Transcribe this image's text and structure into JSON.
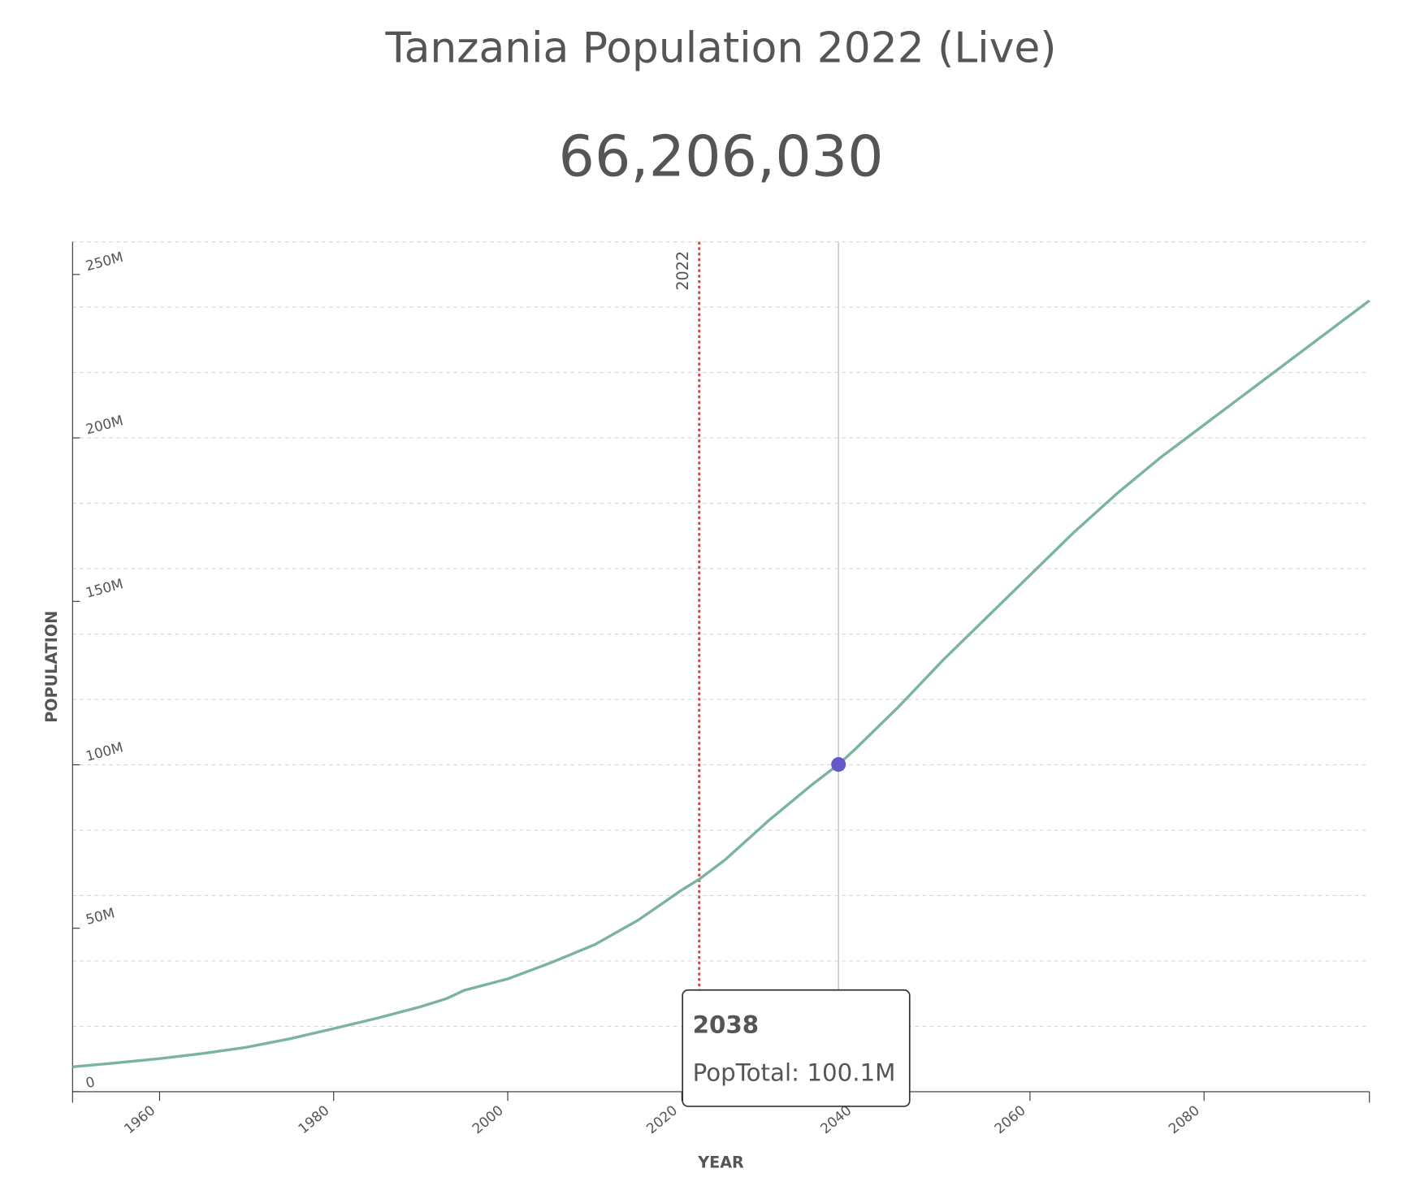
{
  "chart_data": {
    "type": "line",
    "title": "Tanzania Population 2022 (Live)",
    "subtitle": "66,206,030",
    "x_label": "YEAR",
    "y_label": "POPULATION",
    "x": [
      1950,
      1955,
      1960,
      1965,
      1970,
      1975,
      1980,
      1985,
      1990,
      1993,
      1995,
      2000,
      2005,
      2010,
      2015,
      2020,
      2022,
      2025,
      2030,
      2035,
      2038,
      2040,
      2045,
      2050,
      2055,
      2060,
      2065,
      2070,
      2075,
      2080,
      2085,
      2090,
      2095,
      2099
    ],
    "series": [
      {
        "name": "PopTotal",
        "color": "#7ab3a0",
        "values": [
          7600000,
          8800000,
          10100000,
          11700000,
          13600000,
          16200000,
          19300000,
          22500000,
          26000000,
          28500000,
          31000000,
          34500000,
          39500000,
          45000000,
          52500000,
          61700000,
          65000000,
          71000000,
          83000000,
          94000000,
          100100000,
          105000000,
          118000000,
          132000000,
          145000000,
          158000000,
          171000000,
          183000000,
          194000000,
          204000000,
          214000000,
          224000000,
          234000000,
          242000000
        ]
      }
    ],
    "xlim": [
      1950,
      2099
    ],
    "ylim": [
      0,
      260000000
    ],
    "xticks": [
      1960,
      1980,
      2000,
      2020,
      2040,
      2060,
      2080
    ],
    "yticks": [
      {
        "value": 0,
        "label": "0"
      },
      {
        "value": 50000000,
        "label": "50M"
      },
      {
        "value": 100000000,
        "label": "100M"
      },
      {
        "value": 150000000,
        "label": "150M"
      },
      {
        "value": 200000000,
        "label": "200M"
      },
      {
        "value": 250000000,
        "label": "250M"
      }
    ],
    "grid_lines": [
      20000000,
      40000000,
      60000000,
      80000000,
      100000000,
      120000000,
      140000000,
      160000000,
      180000000,
      200000000,
      220000000,
      240000000,
      260000000
    ],
    "marker": {
      "x": 2022,
      "color": "#e53935"
    },
    "hover": {
      "index": 20,
      "color": "#6658c8",
      "title": 2038,
      "text": "PopTotal: 100.1M"
    }
  }
}
